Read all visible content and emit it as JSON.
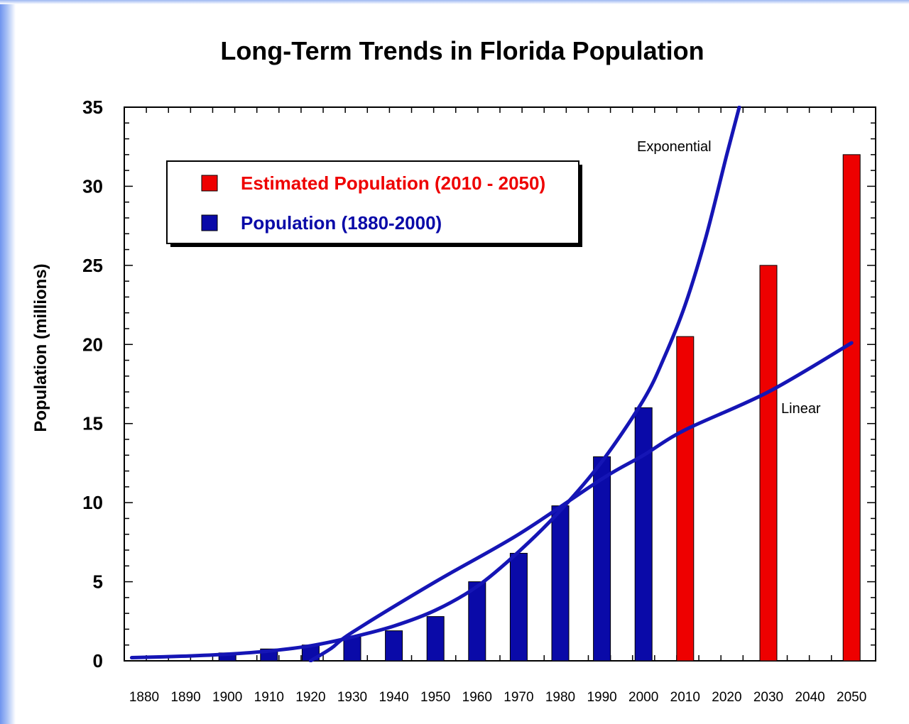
{
  "chart_data": {
    "type": "bar",
    "title": "Long-Term Trends in Florida Population",
    "xlabel": "",
    "ylabel": "Population (millions)",
    "ylim": [
      0,
      35
    ],
    "yticks": [
      "0",
      "5",
      "10",
      "15",
      "20",
      "25",
      "30",
      "35"
    ],
    "categories": [
      "1880",
      "1890",
      "1900",
      "1910",
      "1920",
      "1930",
      "1940",
      "1950",
      "1960",
      "1970",
      "1980",
      "1990",
      "2000",
      "2010",
      "2020",
      "2030",
      "2040",
      "2050"
    ],
    "series": [
      {
        "name": "Population (1880-2000)",
        "color": "#0a0aa8",
        "points": [
          {
            "x": "1900",
            "y": 0.5
          },
          {
            "x": "1910",
            "y": 0.75
          },
          {
            "x": "1920",
            "y": 1.0
          },
          {
            "x": "1930",
            "y": 1.5
          },
          {
            "x": "1940",
            "y": 1.9
          },
          {
            "x": "1950",
            "y": 2.8
          },
          {
            "x": "1960",
            "y": 5.0
          },
          {
            "x": "1970",
            "y": 6.8
          },
          {
            "x": "1980",
            "y": 9.8
          },
          {
            "x": "1990",
            "y": 12.9
          },
          {
            "x": "2000",
            "y": 16.0
          }
        ]
      },
      {
        "name": "Estimated Population (2010 - 2050)",
        "color": "#ee0000",
        "points": [
          {
            "x": "2010",
            "y": 20.5
          },
          {
            "x": "2030",
            "y": 25.0
          },
          {
            "x": "2050",
            "y": 32.0
          }
        ]
      }
    ],
    "trendlines": [
      {
        "label": "Exponential",
        "color": "#1515b5",
        "points": [
          [
            1877,
            0.2
          ],
          [
            1890,
            0.3
          ],
          [
            1900,
            0.42
          ],
          [
            1910,
            0.62
          ],
          [
            1920,
            0.95
          ],
          [
            1930,
            1.5
          ],
          [
            1940,
            2.2
          ],
          [
            1950,
            3.2
          ],
          [
            1960,
            4.7
          ],
          [
            1970,
            6.9
          ],
          [
            1980,
            9.5
          ],
          [
            1990,
            12.6
          ],
          [
            2000,
            16.5
          ],
          [
            2005,
            19.2
          ],
          [
            2010,
            22.5
          ],
          [
            2015,
            26.8
          ],
          [
            2020,
            32.0
          ],
          [
            2023,
            35
          ]
        ]
      },
      {
        "label": "Linear",
        "color": "#1515b5",
        "points": [
          [
            1920,
            0
          ],
          [
            1925,
            0.8
          ],
          [
            1930,
            1.8
          ],
          [
            1950,
            5.0
          ],
          [
            1970,
            8.0
          ],
          [
            1990,
            11.5
          ],
          [
            2000,
            13.0
          ],
          [
            2010,
            14.6
          ],
          [
            2030,
            17.0
          ],
          [
            2050,
            20.1
          ]
        ]
      }
    ],
    "legend": {
      "placement": "top-left",
      "entries": [
        {
          "label": "Estimated Population (2010 - 2050)",
          "color": "#ee0000"
        },
        {
          "label": "Population (1880-2000)",
          "color": "#0a0aa8"
        }
      ]
    },
    "grid": false
  }
}
